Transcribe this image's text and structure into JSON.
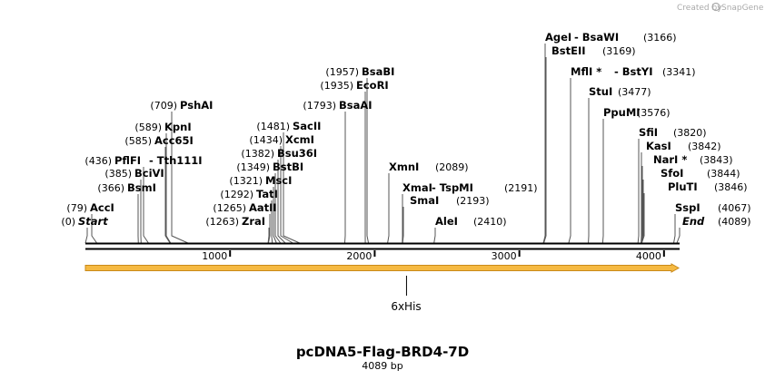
{
  "watermark": {
    "prefix": "Created by",
    "brand": "SnapGene"
  },
  "map": {
    "title": "pcDNA5-Flag-BRD4-7D",
    "length_label": "4089 bp",
    "length_bp": 4089,
    "ticks": [
      {
        "bp": 1000,
        "label": "1000"
      },
      {
        "bp": 2000,
        "label": "2000"
      },
      {
        "bp": 3000,
        "label": "3000"
      },
      {
        "bp": 4000,
        "label": "4000"
      }
    ],
    "feature": {
      "name": "6xHis",
      "start": 0,
      "end": 4089,
      "mark_bp": 2220,
      "color": "#f5b942",
      "edge": "#c98a1a"
    },
    "colors": {
      "line": "#000000",
      "label_line": "#555555"
    }
  },
  "sites": [
    {
      "id": "start",
      "pos": "(0)",
      "name": "Start",
      "bp": 0,
      "italic": true
    },
    {
      "id": "acci",
      "pos": "(79)",
      "name": "AccI",
      "bp": 79
    },
    {
      "id": "bsmi",
      "pos": "(366)",
      "name": "BsmI",
      "bp": 366
    },
    {
      "id": "bcivi",
      "pos": "(385)",
      "name": "BciVI",
      "bp": 385
    },
    {
      "id": "pflfi",
      "pos": "(436)",
      "name": "PflFI",
      "extra": " - Tth111I",
      "bp": 436
    },
    {
      "id": "acc65i",
      "pos": "(585)",
      "name": "Acc65I",
      "bp": 585
    },
    {
      "id": "kpni",
      "pos": "(589)",
      "name": "KpnI",
      "bp": 589
    },
    {
      "id": "pshai",
      "pos": "(709)",
      "name": "PshAI",
      "bp": 709
    },
    {
      "id": "zrai",
      "pos": "(1263)",
      "name": "ZraI",
      "bp": 1263
    },
    {
      "id": "aatii",
      "pos": "(1265)",
      "name": "AatII",
      "bp": 1265
    },
    {
      "id": "tati",
      "pos": "(1292)",
      "name": "TatI",
      "bp": 1292
    },
    {
      "id": "msci",
      "pos": "(1321)",
      "name": "MscI",
      "bp": 1321
    },
    {
      "id": "bstbi",
      "pos": "(1349)",
      "name": "BstBI",
      "bp": 1349
    },
    {
      "id": "bsu36i",
      "pos": "(1382)",
      "name": "Bsu36I",
      "bp": 1382
    },
    {
      "id": "xcmi",
      "pos": "(1434)",
      "name": "XcmI",
      "bp": 1434
    },
    {
      "id": "sacii",
      "pos": "(1481)",
      "name": "SacII",
      "bp": 1481
    },
    {
      "id": "bsaai",
      "pos": "(1793)",
      "name": "BsaAI",
      "bp": 1793
    },
    {
      "id": "ecori",
      "pos": "(1935)",
      "name": "EcoRI",
      "bp": 1935
    },
    {
      "id": "bsabi",
      "pos": "(1957)",
      "name": "BsaBI",
      "bp": 1957
    },
    {
      "id": "xmni",
      "name": "XmnI",
      "pos": "(2089)",
      "bp": 2089,
      "right": true
    },
    {
      "id": "xmai",
      "name": "XmaI",
      "extra": " - TspMI",
      "pos": "(2191)",
      "bp": 2191,
      "right": true
    },
    {
      "id": "smai",
      "name": "SmaI",
      "pos": "(2193)",
      "bp": 2193,
      "right": true
    },
    {
      "id": "alei",
      "name": "AleI",
      "pos": "(2410)",
      "bp": 2410,
      "right": true
    },
    {
      "id": "agei",
      "name": "AgeI",
      "extra": " - BsaWI",
      "pos": "(3166)",
      "bp": 3166,
      "right": true
    },
    {
      "id": "bsteii",
      "name": "BstEII",
      "pos": "(3169)",
      "bp": 3169,
      "right": true
    },
    {
      "id": "mfli",
      "name": "MflI *",
      "extra": " - BstYI",
      "pos": "(3341)",
      "bp": 3341,
      "right": true
    },
    {
      "id": "stui",
      "name": "StuI",
      "pos": "(3477)",
      "bp": 3477,
      "right": true
    },
    {
      "id": "ppumi",
      "name": "PpuMI",
      "pos": "(3576)",
      "bp": 3576,
      "right": true
    },
    {
      "id": "sfii",
      "name": "SfiI",
      "pos": "(3820)",
      "bp": 3820,
      "right": true
    },
    {
      "id": "kasi",
      "name": "KasI",
      "pos": "(3842)",
      "bp": 3842,
      "right": true
    },
    {
      "id": "nari",
      "name": "NarI *",
      "pos": "(3843)",
      "bp": 3843,
      "right": true
    },
    {
      "id": "sfoi",
      "name": "SfoI",
      "pos": "(3844)",
      "bp": 3844,
      "right": true
    },
    {
      "id": "pluti",
      "name": "PluTI",
      "pos": "(3846)",
      "bp": 3846,
      "right": true
    },
    {
      "id": "sspi",
      "name": "SspI",
      "pos": "(4067)",
      "bp": 4067,
      "right": true
    },
    {
      "id": "end",
      "name": "End",
      "pos": "(4089)",
      "bp": 4089,
      "right": true,
      "italic": true
    }
  ]
}
